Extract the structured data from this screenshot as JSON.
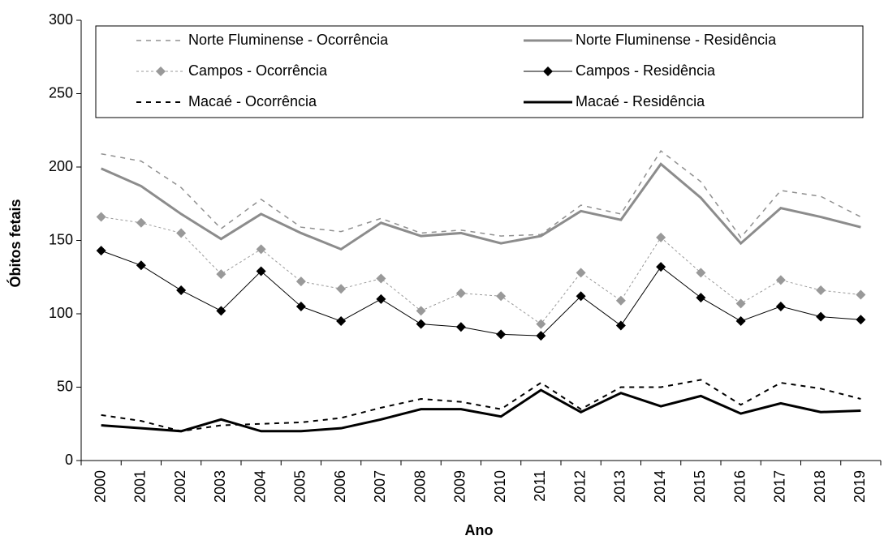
{
  "chart_data": {
    "type": "line",
    "x_label": "Ano",
    "y_label": "Óbitos fetais",
    "categories": [
      "2000",
      "2001",
      "2002",
      "2003",
      "2004",
      "2005",
      "2006",
      "2007",
      "2008",
      "2009",
      "2010",
      "2011",
      "2012",
      "2013",
      "2014",
      "2015",
      "2016",
      "2017",
      "2018",
      "2019"
    ],
    "ylim": [
      0,
      300
    ],
    "yticks": [
      0,
      50,
      100,
      150,
      200,
      250,
      300
    ],
    "series": [
      {
        "name": "Norte Fluminense - Ocorrência",
        "color": "#909090",
        "style": "dashed",
        "line_width": 1.5,
        "marker": "none",
        "values": [
          209,
          204,
          186,
          158,
          178,
          159,
          156,
          165,
          155,
          157,
          153,
          154,
          174,
          168,
          211,
          190,
          152,
          184,
          180,
          166
        ]
      },
      {
        "name": "Norte Fluminense - Residência",
        "color": "#8c8c8c",
        "style": "solid",
        "line_width": 3,
        "marker": "none",
        "values": [
          199,
          187,
          168,
          151,
          168,
          155,
          144,
          162,
          153,
          155,
          148,
          153,
          170,
          164,
          202,
          179,
          148,
          172,
          166,
          159
        ]
      },
      {
        "name": "Campos - Ocorrência",
        "color": "#999999",
        "style": "dotted",
        "line_width": 1,
        "marker": "diamond",
        "values": [
          166,
          162,
          155,
          127,
          144,
          122,
          117,
          124,
          102,
          114,
          112,
          93,
          128,
          109,
          152,
          128,
          107,
          123,
          116,
          113
        ]
      },
      {
        "name": "Campos - Residência",
        "color": "#000000",
        "style": "solid",
        "line_width": 1,
        "marker": "diamond",
        "values": [
          143,
          133,
          116,
          102,
          129,
          105,
          95,
          110,
          93,
          91,
          86,
          85,
          112,
          92,
          132,
          111,
          95,
          105,
          98,
          96
        ]
      },
      {
        "name": "Macaé - Ocorrência",
        "color": "#000000",
        "style": "dashed",
        "line_width": 2,
        "marker": "none",
        "values": [
          31,
          27,
          20,
          24,
          25,
          26,
          29,
          36,
          42,
          40,
          35,
          53,
          35,
          50,
          50,
          55,
          38,
          53,
          49,
          42
        ]
      },
      {
        "name": "Macaé - Residência",
        "color": "#000000",
        "style": "solid",
        "line_width": 3,
        "marker": "none",
        "values": [
          24,
          22,
          20,
          28,
          20,
          20,
          22,
          28,
          35,
          35,
          30,
          48,
          33,
          46,
          37,
          44,
          32,
          39,
          33,
          34
        ]
      }
    ]
  }
}
